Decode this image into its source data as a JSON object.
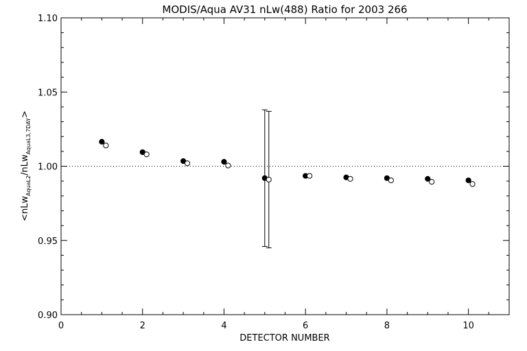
{
  "chart_data": {
    "type": "scatter",
    "title": "MODIS/Aqua AV31 nLw(488) Ratio for 2003 266",
    "xlabel": "DETECTOR NUMBER",
    "ylabel": {
      "open": "<nLw",
      "sub1": "AquaL2",
      "mid": "/nLw",
      "sub2": "AquaL3,7DAY",
      "close": ">"
    },
    "xlim": [
      0,
      11
    ],
    "ylim": [
      0.9,
      1.1
    ],
    "x_ticks": [
      "0",
      "2",
      "4",
      "6",
      "8",
      "10"
    ],
    "y_ticks": [
      "0.90",
      "0.95",
      "1.00",
      "1.05",
      "1.10"
    ],
    "reference_line": 1.0,
    "grid": false,
    "series": [
      {
        "marker": "filled-circle",
        "x": [
          1,
          2,
          3,
          4,
          5,
          6,
          7,
          8,
          9,
          10
        ],
        "y": [
          1.0165,
          1.0095,
          1.0035,
          1.003,
          0.992,
          0.9935,
          0.9925,
          0.992,
          0.9915,
          0.9905
        ],
        "error": [
          null,
          null,
          null,
          null,
          [
            0.946,
            1.038
          ],
          null,
          null,
          null,
          null,
          null
        ]
      },
      {
        "marker": "open-circle",
        "x": [
          1.1,
          2.1,
          3.1,
          4.1,
          5.1,
          6.1,
          7.1,
          8.1,
          9.1,
          10.1
        ],
        "y": [
          1.014,
          1.008,
          1.002,
          1.0005,
          0.991,
          0.9935,
          0.9915,
          0.9905,
          0.9895,
          0.988
        ],
        "error": [
          null,
          null,
          null,
          null,
          [
            0.945,
            1.037
          ],
          null,
          null,
          null,
          null,
          null
        ]
      }
    ]
  }
}
